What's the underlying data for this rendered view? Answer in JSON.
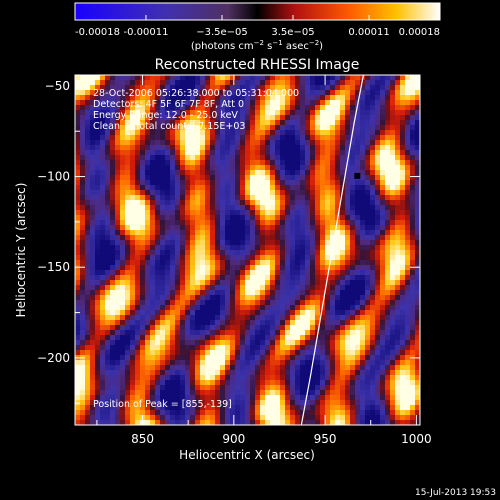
{
  "chart_data": {
    "type": "heatmap",
    "title": "Reconstructed RHESSI Image",
    "xlabel": "Heliocentric X (arcsec)",
    "ylabel": "Heliocentric Y (arcsec)",
    "xlim": [
      813,
      1002
    ],
    "ylim": [
      -237,
      -44
    ],
    "x_ticks": [
      850,
      900,
      950,
      1000
    ],
    "y_ticks": [
      -50,
      -100,
      -150,
      -200
    ],
    "colorbar": {
      "min": -0.00018,
      "max": 0.00018,
      "tick_values": [
        -0.00018,
        -0.00011,
        -3.5e-05,
        3.5e-05,
        0.00011,
        0.00018
      ],
      "tick_labels": [
        "-0.00018",
        "-0.00011",
        "−3.5e−05",
        "3.5e−05",
        "0.00011",
        "0.00018"
      ],
      "units_label_main": "(photons cm",
      "units_exp1": "−2",
      "units_mid": " s",
      "units_exp2": "−1",
      "units_mid2": " asec",
      "units_exp3": "−2",
      "units_close": ")"
    },
    "annotations": {
      "line1": "28-Oct-2006 05:26:38.000 to 05:31:04.000",
      "line2": "Detectors: 4F 5F 6F 7F 8F, Att 0",
      "line3": "Energy Range: 12.0 - 25.0 keV",
      "line4": "Clean     Total counts: 7.15E+03",
      "peak": "Position of Peak = [855,-139]"
    },
    "limb_line": [
      [
        937,
        -237
      ],
      [
        942,
        -210
      ],
      [
        948,
        -175
      ],
      [
        954,
        -140
      ],
      [
        960,
        -105
      ],
      [
        966,
        -70
      ],
      [
        971,
        -44
      ]
    ],
    "peak_position": [
      855,
      -139
    ],
    "timestamp": "15-Jul-2013 19:53"
  }
}
